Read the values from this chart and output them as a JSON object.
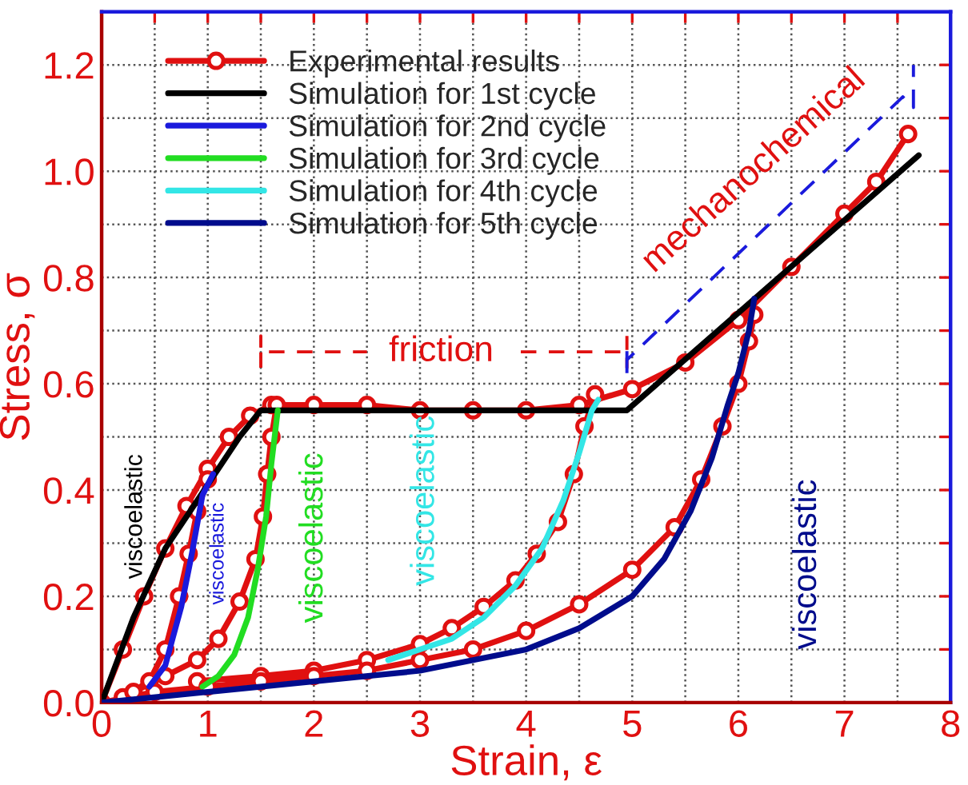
{
  "chart_data": {
    "type": "line",
    "xlabel": "Strain, ε",
    "ylabel": "Stress, σ",
    "xlim": [
      0,
      8
    ],
    "ylim": [
      0,
      1.3
    ],
    "xticks": [
      0,
      {
        "value": 0.5,
        "label": null
      },
      1,
      {
        "value": 1.5,
        "label": null
      },
      2,
      {
        "value": 2.5,
        "label": null
      },
      3,
      {
        "value": 3.5,
        "label": null
      },
      4,
      {
        "value": 4.5,
        "label": null
      },
      5,
      {
        "value": 5.5,
        "label": null
      },
      6,
      {
        "value": 6.5,
        "label": null
      },
      7,
      {
        "value": 7.5,
        "label": null
      },
      8
    ],
    "yticks": [
      {
        "value": 0,
        "label": "0.0"
      },
      {
        "value": 0.1,
        "label": null
      },
      {
        "value": 0.2,
        "label": "0.2"
      },
      {
        "value": 0.3,
        "label": null
      },
      {
        "value": 0.4,
        "label": "0.4"
      },
      {
        "value": 0.5,
        "label": null
      },
      {
        "value": 0.6,
        "label": "0.6"
      },
      {
        "value": 0.7,
        "label": null
      },
      {
        "value": 0.8,
        "label": "0.8"
      },
      {
        "value": 0.9,
        "label": null
      },
      {
        "value": 1.0,
        "label": "1.0"
      },
      {
        "value": 1.1,
        "label": null
      },
      {
        "value": 1.2,
        "label": "1.2"
      }
    ],
    "grid": true,
    "legend": "top left",
    "series": [
      {
        "name": "Experimental results",
        "color": "#e01010",
        "marker": "circle",
        "x": [
          0,
          0.2,
          0.4,
          0.6,
          0.8,
          1.0,
          1.2,
          1.4,
          1.6,
          2.0,
          2.5,
          3.0,
          3.5,
          4.0,
          4.5,
          5.0,
          5.5,
          6.0,
          6.5,
          7.0,
          7.3,
          7.6,
          null,
          0.2,
          0.45,
          0.6,
          0.73,
          0.82,
          0.9,
          1.0,
          null,
          0.3,
          0.6,
          0.9,
          1.1,
          1.3,
          1.45,
          1.52,
          1.56,
          1.6,
          1.65,
          null,
          0.9,
          1.5,
          2.0,
          2.5,
          3.0,
          3.3,
          3.6,
          3.9,
          4.1,
          4.3,
          4.45,
          4.55,
          4.65,
          null,
          0,
          0.5,
          1.0,
          1.5,
          2.0,
          2.5,
          3.0,
          3.5,
          4.0,
          4.5,
          5.0,
          5.4,
          5.65,
          5.85,
          6.0,
          6.1,
          6.15
        ],
        "values": [
          0,
          0.1,
          0.2,
          0.29,
          0.37,
          0.44,
          0.5,
          0.54,
          0.56,
          0.56,
          0.56,
          0.55,
          0.55,
          0.55,
          0.56,
          0.59,
          0.64,
          0.72,
          0.82,
          0.92,
          0.98,
          1.07,
          null,
          0.01,
          0.04,
          0.1,
          0.2,
          0.28,
          0.36,
          0.42,
          null,
          0.02,
          0.05,
          0.08,
          0.12,
          0.19,
          0.27,
          0.35,
          0.43,
          0.5,
          0.56,
          null,
          0.04,
          0.05,
          0.06,
          0.08,
          0.11,
          0.14,
          0.18,
          0.23,
          0.28,
          0.34,
          0.43,
          0.52,
          0.58,
          null,
          0,
          0.02,
          0.03,
          0.04,
          0.05,
          0.06,
          0.08,
          0.1,
          0.135,
          0.185,
          0.25,
          0.33,
          0.42,
          0.52,
          0.6,
          0.68,
          0.73
        ]
      },
      {
        "name": "Simulation for 1st cycle",
        "color": "#000000",
        "x": [
          0,
          0.3,
          0.6,
          1.0,
          1.3,
          1.5,
          4.95,
          7.7
        ],
        "values": [
          0,
          0.16,
          0.29,
          0.41,
          0.5,
          0.55,
          0.55,
          1.03
        ]
      },
      {
        "name": "Simulation for 2nd cycle",
        "color": "#1a1adc",
        "x": [
          0.45,
          0.6,
          0.75,
          0.85,
          0.95,
          1.05
        ],
        "values": [
          0.03,
          0.07,
          0.18,
          0.28,
          0.39,
          0.43
        ]
      },
      {
        "name": "Simulation for 3rd cycle",
        "color": "#22dd22",
        "x": [
          0.95,
          1.1,
          1.25,
          1.38,
          1.47,
          1.55,
          1.6,
          1.66
        ],
        "values": [
          0.03,
          0.05,
          0.09,
          0.16,
          0.25,
          0.35,
          0.45,
          0.55
        ]
      },
      {
        "name": "Simulation for 4th cycle",
        "color": "#33e6e6",
        "x": [
          2.7,
          3.0,
          3.3,
          3.6,
          3.9,
          4.15,
          4.35,
          4.5,
          4.62,
          4.68
        ],
        "values": [
          0.08,
          0.1,
          0.12,
          0.16,
          0.22,
          0.29,
          0.38,
          0.47,
          0.55,
          0.57
        ]
      },
      {
        "name": "Simulation for 5th cycle",
        "color": "#000c8c",
        "x": [
          0,
          1,
          2,
          3,
          3.5,
          4,
          4.5,
          5,
          5.3,
          5.55,
          5.75,
          5.9,
          6.0,
          6.1,
          6.15
        ],
        "values": [
          0,
          0.02,
          0.04,
          0.06,
          0.08,
          0.1,
          0.14,
          0.2,
          0.27,
          0.36,
          0.46,
          0.56,
          0.62,
          0.7,
          0.76
        ]
      }
    ],
    "annotations": [
      "viscoelastic",
      "viscoelastic",
      "viscoelastic",
      "viscoelastic",
      "viscoelastic",
      "friction",
      "mechanochemical"
    ]
  }
}
